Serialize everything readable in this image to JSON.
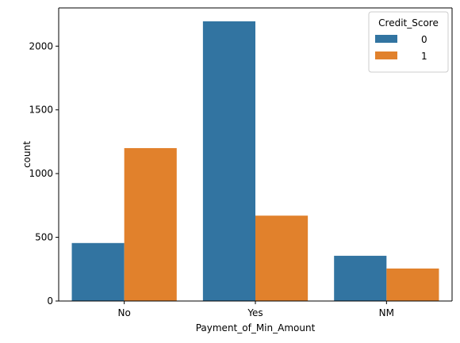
{
  "chart_data": {
    "type": "bar",
    "xlabel": "Payment_of_Min_Amount",
    "ylabel": "count",
    "categories": [
      "No",
      "Yes",
      "NM"
    ],
    "series": [
      {
        "name": "0",
        "values": [
          455,
          2195,
          355
        ],
        "color": "#3274a1"
      },
      {
        "name": "1",
        "values": [
          1200,
          670,
          255
        ],
        "color": "#e1812c"
      }
    ],
    "ylim": [
      0,
      2300
    ],
    "yticks": [
      0,
      500,
      1000,
      1500,
      2000
    ],
    "legend": {
      "title": "Credit_Score",
      "placement": "top-right"
    },
    "grid": false
  }
}
